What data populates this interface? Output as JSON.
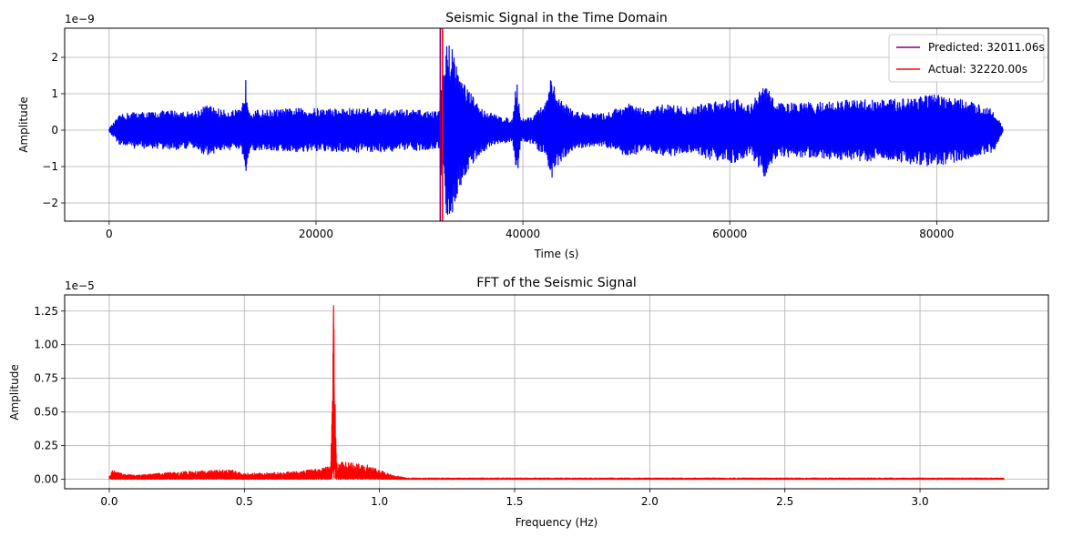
{
  "chart_data": [
    {
      "type": "line",
      "title": "Seismic Signal in the Time Domain",
      "xlabel": "Time (s)",
      "ylabel": "Amplitude",
      "y_offset_text": "1e−9",
      "xlim": [
        -4300,
        90800
      ],
      "ylim": [
        -2.5,
        2.8
      ],
      "xticks": [
        0,
        20000,
        40000,
        60000,
        80000
      ],
      "xtick_labels": [
        "0",
        "20000",
        "40000",
        "60000",
        "80000"
      ],
      "yticks": [
        -2,
        -1,
        0,
        1,
        2
      ],
      "ytick_labels": [
        "−2",
        "−1",
        "0",
        "1",
        "2"
      ],
      "grid": true,
      "legend_position": "top-right",
      "series": [
        {
          "name": "",
          "color": "#0000ff",
          "x_range": [
            0,
            86400
          ],
          "envelope": [
            [
              0,
              0.05
            ],
            [
              1000,
              0.4
            ],
            [
              2000,
              0.5
            ],
            [
              4000,
              0.5
            ],
            [
              6000,
              0.55
            ],
            [
              8000,
              0.5
            ],
            [
              9500,
              0.7
            ],
            [
              11000,
              0.55
            ],
            [
              12800,
              0.55
            ],
            [
              13200,
              1.4
            ],
            [
              13600,
              0.55
            ],
            [
              15000,
              0.55
            ],
            [
              18000,
              0.6
            ],
            [
              22000,
              0.6
            ],
            [
              26000,
              0.6
            ],
            [
              30000,
              0.55
            ],
            [
              31800,
              0.5
            ],
            [
              32300,
              1.6
            ],
            [
              32700,
              2.5
            ],
            [
              33200,
              2.3
            ],
            [
              34000,
              1.5
            ],
            [
              35000,
              1.0
            ],
            [
              36000,
              0.6
            ],
            [
              37500,
              0.4
            ],
            [
              39000,
              0.3
            ],
            [
              39400,
              1.45
            ],
            [
              39800,
              0.3
            ],
            [
              41000,
              0.4
            ],
            [
              42300,
              0.8
            ],
            [
              42700,
              1.4
            ],
            [
              43500,
              0.9
            ],
            [
              45000,
              0.5
            ],
            [
              48000,
              0.45
            ],
            [
              50000,
              0.75
            ],
            [
              52000,
              0.55
            ],
            [
              54000,
              0.75
            ],
            [
              56000,
              0.6
            ],
            [
              58000,
              0.8
            ],
            [
              60500,
              0.9
            ],
            [
              62000,
              0.7
            ],
            [
              63400,
              1.3
            ],
            [
              64500,
              0.75
            ],
            [
              67000,
              0.75
            ],
            [
              70000,
              0.8
            ],
            [
              73000,
              0.85
            ],
            [
              76000,
              0.85
            ],
            [
              78500,
              1.0
            ],
            [
              80500,
              0.95
            ],
            [
              83000,
              0.8
            ],
            [
              85500,
              0.6
            ],
            [
              86400,
              0.05
            ]
          ]
        }
      ],
      "vlines": [
        {
          "name": "Predicted: 32011.06s",
          "x": 32011.06,
          "color": "#800080"
        },
        {
          "name": "Actual: 32220.00s",
          "x": 32220.0,
          "color": "#ff0000"
        }
      ]
    },
    {
      "type": "line",
      "title": "FFT of the Seismic Signal",
      "xlabel": "Frequency (Hz)",
      "ylabel": "Amplitude",
      "y_offset_text": "1e−5",
      "xlim": [
        -0.165,
        3.475
      ],
      "ylim": [
        -0.07,
        1.37
      ],
      "xticks": [
        0.0,
        0.5,
        1.0,
        1.5,
        2.0,
        2.5,
        3.0
      ],
      "xtick_labels": [
        "0.0",
        "0.5",
        "1.0",
        "1.5",
        "2.0",
        "2.5",
        "3.0"
      ],
      "yticks": [
        0.0,
        0.25,
        0.5,
        0.75,
        1.0,
        1.25
      ],
      "ytick_labels": [
        "0.00",
        "0.25",
        "0.50",
        "0.75",
        "1.00",
        "1.25"
      ],
      "grid": true,
      "series": [
        {
          "name": "",
          "color": "#ff0000",
          "x_range": [
            0.0,
            3.31
          ],
          "envelope": [
            [
              0.0,
              0.05
            ],
            [
              0.01,
              0.07
            ],
            [
              0.05,
              0.04
            ],
            [
              0.1,
              0.03
            ],
            [
              0.15,
              0.04
            ],
            [
              0.2,
              0.05
            ],
            [
              0.3,
              0.06
            ],
            [
              0.4,
              0.07
            ],
            [
              0.45,
              0.07
            ],
            [
              0.5,
              0.045
            ],
            [
              0.6,
              0.05
            ],
            [
              0.7,
              0.06
            ],
            [
              0.8,
              0.09
            ],
            [
              0.82,
              0.11
            ],
            [
              0.83,
              1.29
            ],
            [
              0.84,
              0.14
            ],
            [
              0.9,
              0.12
            ],
            [
              0.95,
              0.11
            ],
            [
              1.0,
              0.07
            ],
            [
              1.05,
              0.03
            ],
            [
              1.1,
              0.01
            ],
            [
              2.0,
              0.01
            ],
            [
              3.31,
              0.01
            ]
          ]
        }
      ]
    }
  ]
}
